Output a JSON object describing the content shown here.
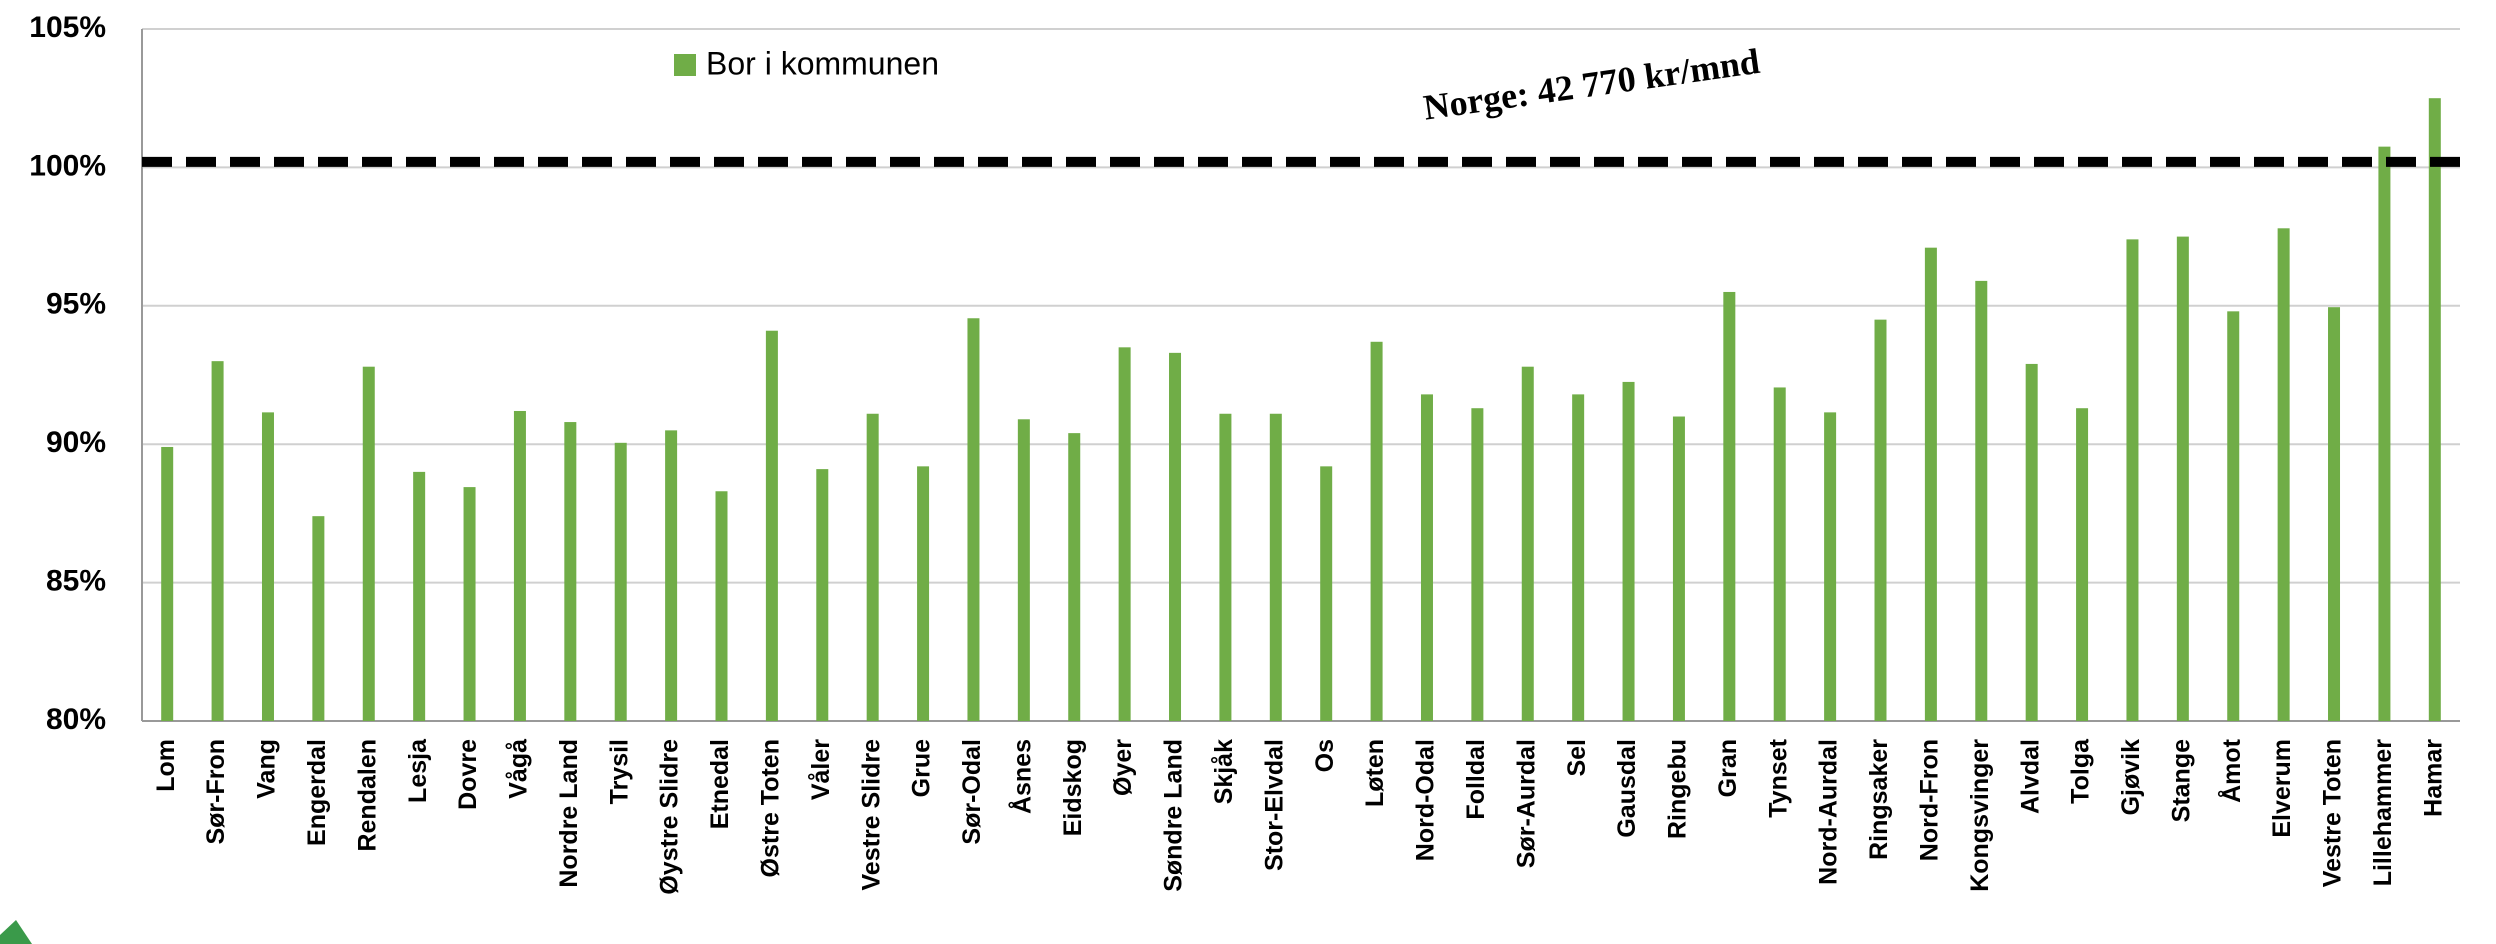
{
  "chart_data": {
    "type": "bar",
    "categories": [
      "Lom",
      "Sør-Fron",
      "Vang",
      "Engerdal",
      "Rendalen",
      "Lesja",
      "Dovre",
      "Vågå",
      "Nordre Land",
      "Trysil",
      "Øystre Slidre",
      "Etnedal",
      "Østre Toten",
      "Våler",
      "Vestre Slidre",
      "Grue",
      "Sør-Odal",
      "Åsnes",
      "Eidskog",
      "Øyer",
      "Søndre Land",
      "Skjåk",
      "Stor-Elvdal",
      "Os",
      "Løten",
      "Nord-Odal",
      "Folldal",
      "Sør-Aurdal",
      "Sel",
      "Gausdal",
      "Ringebu",
      "Gran",
      "Tynset",
      "Nord-Aurdal",
      "Ringsaker",
      "Nord-Fron",
      "Kongsvinger",
      "Alvdal",
      "Tolga",
      "Gjøvik",
      "Stange",
      "Åmot",
      "Elverum",
      "Vestre Toten",
      "Lillehammer",
      "Hamar"
    ],
    "series": [
      {
        "name": "Bor i kommunen",
        "color": "#70ad47",
        "values": [
          89.9,
          93.0,
          91.15,
          87.4,
          92.8,
          89.0,
          88.45,
          91.2,
          90.8,
          90.05,
          90.5,
          88.3,
          94.1,
          89.1,
          91.1,
          89.2,
          94.55,
          90.9,
          90.4,
          93.5,
          93.3,
          91.1,
          91.1,
          89.2,
          93.7,
          91.8,
          91.3,
          92.8,
          91.8,
          92.25,
          91.0,
          95.5,
          92.05,
          91.15,
          94.5,
          97.1,
          95.9,
          92.9,
          91.3,
          97.4,
          97.5,
          94.8,
          97.8,
          94.95,
          100.75,
          102.5
        ]
      }
    ],
    "ylim": [
      80,
      105
    ],
    "yticks": [
      {
        "value": 80,
        "label": "80%"
      },
      {
        "value": 85,
        "label": "85%"
      },
      {
        "value": 90,
        "label": "90%"
      },
      {
        "value": 95,
        "label": "95%"
      },
      {
        "value": 100,
        "label": "100%"
      },
      {
        "value": 105,
        "label": "105%"
      }
    ],
    "grid": true,
    "reference_line": {
      "value": 100.2,
      "label": "Norge: 42 770 kr/mnd"
    }
  }
}
